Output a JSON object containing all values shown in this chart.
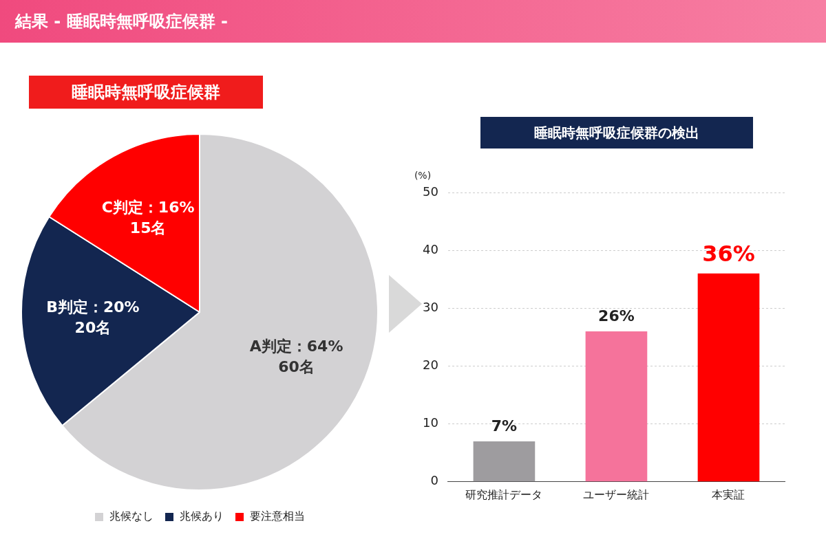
{
  "chart_data": [
    {
      "type": "pie",
      "title": "睡眠時無呼吸症候群",
      "annotations": [
        "結果 - 睡眠時無呼吸症候群 -"
      ],
      "categories": [
        "兆候なし",
        "兆候あり",
        "要注意相当"
      ],
      "values": [
        64,
        20,
        16
      ],
      "colors": [
        "#d3d2d4",
        "#132650",
        "#ff0000"
      ],
      "value_labels": [
        "A判定：64%\n60名",
        "B判定：20%\n20名",
        "C判定：16%\n15名"
      ],
      "legend": "bottom"
    },
    {
      "type": "bar",
      "title": "睡眠時無呼吸症候群の検出",
      "ylabel": "(%)",
      "categories": [
        "研究推計データ",
        "ユーザー統計",
        "本実証"
      ],
      "values": [
        7,
        26,
        36
      ],
      "colors": [
        "#9e9c9f",
        "#f5739b",
        "#ff0000"
      ],
      "value_labels": [
        "7%",
        "26%",
        "36%"
      ],
      "ylim": [
        0,
        50
      ],
      "yticks": [
        0,
        10,
        20,
        30,
        40,
        50
      ],
      "grid": "y"
    }
  ]
}
